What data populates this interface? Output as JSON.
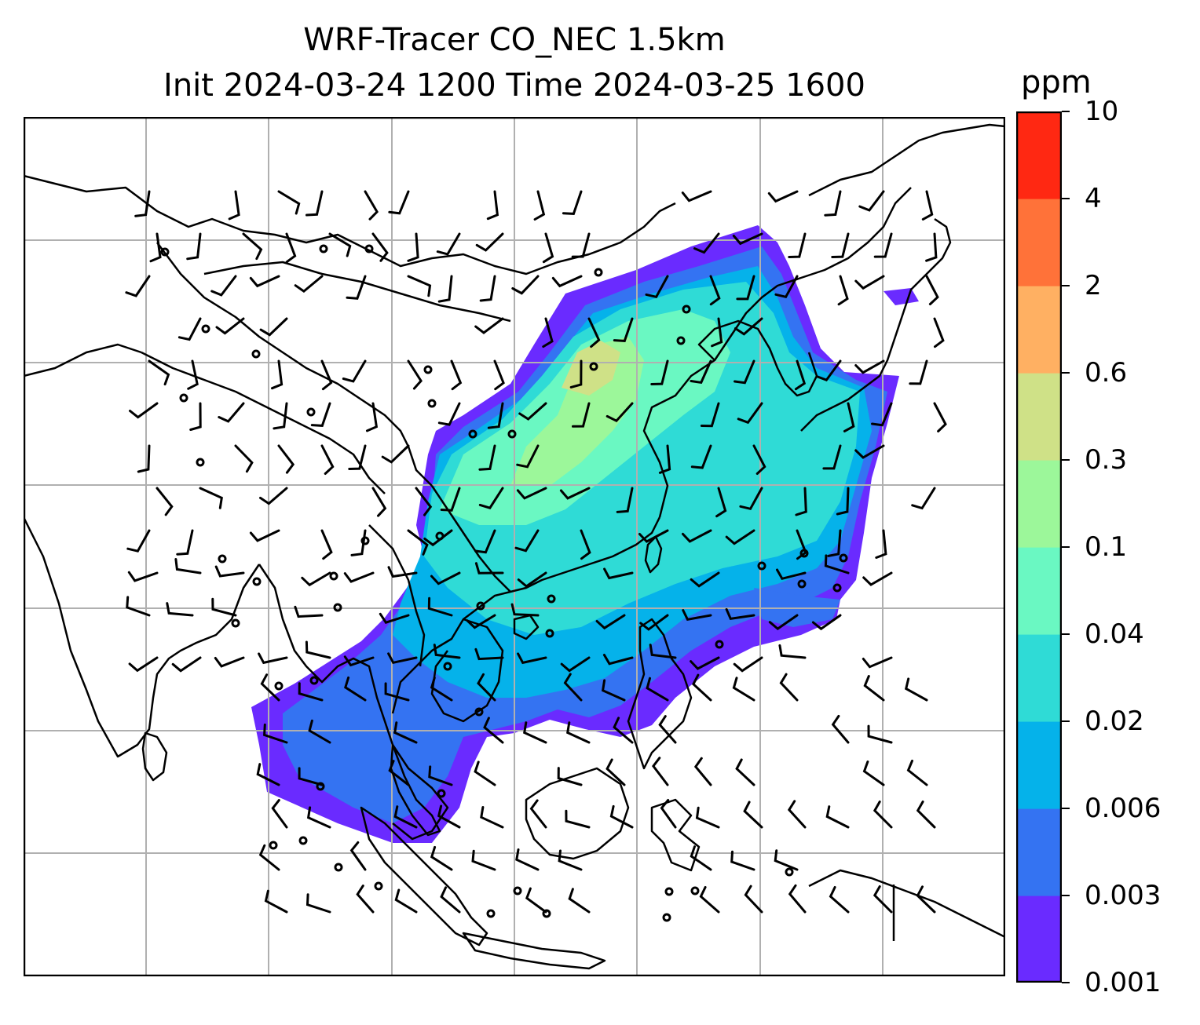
{
  "title": {
    "line1": "WRF-Tracer CO_NEC 1.5km",
    "line2": "Init 2024-03-24 1200 Time 2024-03-25 1600"
  },
  "colorbar": {
    "unit": "ppm",
    "levels": [
      "0.001",
      "0.003",
      "0.006",
      "0.02",
      "0.04",
      "0.1",
      "0.3",
      "0.6",
      "2",
      "4",
      "10"
    ],
    "colors": [
      "#6a2bff",
      "#3473f2",
      "#05b2ea",
      "#2fdbd6",
      "#6af8c2",
      "#9cf79a",
      "#cfe187",
      "#ffb062",
      "#ff7239",
      "#ff2812"
    ]
  },
  "map": {
    "gridlines": true,
    "coastline_color": "#000000",
    "grid_color": "#b0b0b0",
    "wind_barb_color": "#000000"
  }
}
